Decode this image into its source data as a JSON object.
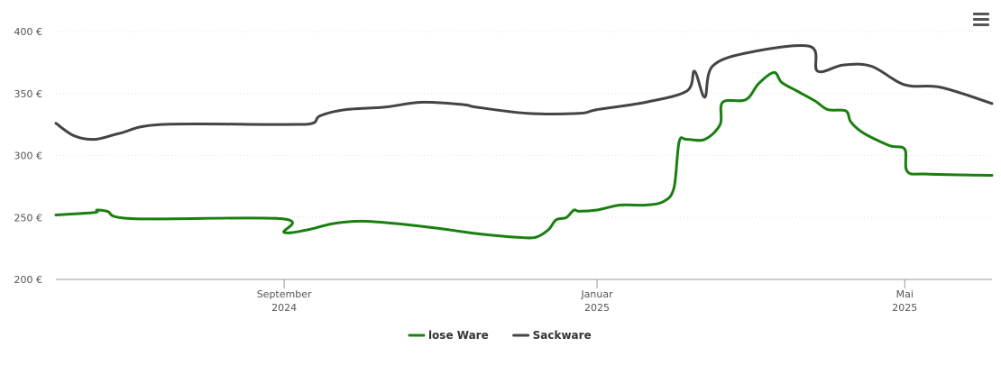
{
  "menu": {
    "icon": "hamburger-menu-icon"
  },
  "chart_data": {
    "type": "line",
    "title": "",
    "xlabel": "",
    "ylabel": "",
    "ylim": [
      200,
      400
    ],
    "y_ticks": [
      {
        "value": 200,
        "label": "200 €"
      },
      {
        "value": 250,
        "label": "250 €"
      },
      {
        "value": 300,
        "label": "300 €"
      },
      {
        "value": 350,
        "label": "350 €"
      },
      {
        "value": 400,
        "label": "400 €"
      }
    ],
    "xlim": [
      "2024-06-04",
      "2025-06-04"
    ],
    "x_ticks": [
      {
        "date": "2024-09-01",
        "month": "September",
        "year": "2024"
      },
      {
        "date": "2025-01-01",
        "month": "Januar",
        "year": "2025"
      },
      {
        "date": "2025-05-01",
        "month": "Mai",
        "year": "2025"
      }
    ],
    "grid": true,
    "legend": "bottom-center",
    "series": [
      {
        "name": "lose Ware",
        "color": "#1a7f10",
        "points": [
          [
            "2024-06-04",
            252
          ],
          [
            "2024-06-19",
            254
          ],
          [
            "2024-06-20",
            256
          ],
          [
            "2024-06-24",
            255
          ],
          [
            "2024-07-04",
            249
          ],
          [
            "2024-08-31",
            249
          ],
          [
            "2024-09-01",
            238
          ],
          [
            "2024-09-10",
            240
          ],
          [
            "2024-09-20",
            245
          ],
          [
            "2024-10-01",
            247
          ],
          [
            "2024-10-15",
            245
          ],
          [
            "2024-11-01",
            241
          ],
          [
            "2024-11-15",
            237
          ],
          [
            "2024-12-01",
            234
          ],
          [
            "2024-12-08",
            234
          ],
          [
            "2024-12-13",
            240
          ],
          [
            "2024-12-16",
            248
          ],
          [
            "2024-12-20",
            250
          ],
          [
            "2024-12-23",
            256
          ],
          [
            "2024-12-25",
            255
          ],
          [
            "2025-01-01",
            256
          ],
          [
            "2025-01-10",
            260
          ],
          [
            "2025-01-20",
            260
          ],
          [
            "2025-01-27",
            263
          ],
          [
            "2025-01-31",
            274
          ],
          [
            "2025-02-02",
            311
          ],
          [
            "2025-02-05",
            313
          ],
          [
            "2025-02-12",
            313
          ],
          [
            "2025-02-18",
            325
          ],
          [
            "2025-02-19",
            343
          ],
          [
            "2025-02-28",
            345
          ],
          [
            "2025-03-05",
            358
          ],
          [
            "2025-03-11",
            367
          ],
          [
            "2025-03-14",
            359
          ],
          [
            "2025-03-20",
            352
          ],
          [
            "2025-03-27",
            344
          ],
          [
            "2025-04-01",
            337
          ],
          [
            "2025-04-08",
            336
          ],
          [
            "2025-04-10",
            327
          ],
          [
            "2025-04-15",
            318
          ],
          [
            "2025-04-25",
            308
          ],
          [
            "2025-05-01",
            305
          ],
          [
            "2025-05-02",
            287
          ],
          [
            "2025-05-10",
            285
          ],
          [
            "2025-06-04",
            284
          ]
        ]
      },
      {
        "name": "Sackware",
        "color": "#434348",
        "points": [
          [
            "2024-06-04",
            326
          ],
          [
            "2024-06-11",
            316
          ],
          [
            "2024-06-19",
            313
          ],
          [
            "2024-06-29",
            318
          ],
          [
            "2024-07-15",
            325
          ],
          [
            "2024-09-01",
            325
          ],
          [
            "2024-09-12",
            326
          ],
          [
            "2024-09-15",
            332
          ],
          [
            "2024-09-25",
            337
          ],
          [
            "2024-10-10",
            339
          ],
          [
            "2024-10-25",
            343
          ],
          [
            "2024-11-10",
            341
          ],
          [
            "2024-11-15",
            339
          ],
          [
            "2024-12-05",
            334
          ],
          [
            "2024-12-25",
            334
          ],
          [
            "2025-01-01",
            337
          ],
          [
            "2025-01-20",
            343
          ],
          [
            "2025-02-05",
            352
          ],
          [
            "2025-02-08",
            368
          ],
          [
            "2025-02-12",
            347
          ],
          [
            "2025-02-15",
            372
          ],
          [
            "2025-03-01",
            383
          ],
          [
            "2025-03-25",
            388
          ],
          [
            "2025-03-28",
            368
          ],
          [
            "2025-04-07",
            373
          ],
          [
            "2025-04-18",
            372
          ],
          [
            "2025-05-01",
            357
          ],
          [
            "2025-05-15",
            355
          ],
          [
            "2025-06-04",
            342
          ]
        ]
      }
    ]
  }
}
